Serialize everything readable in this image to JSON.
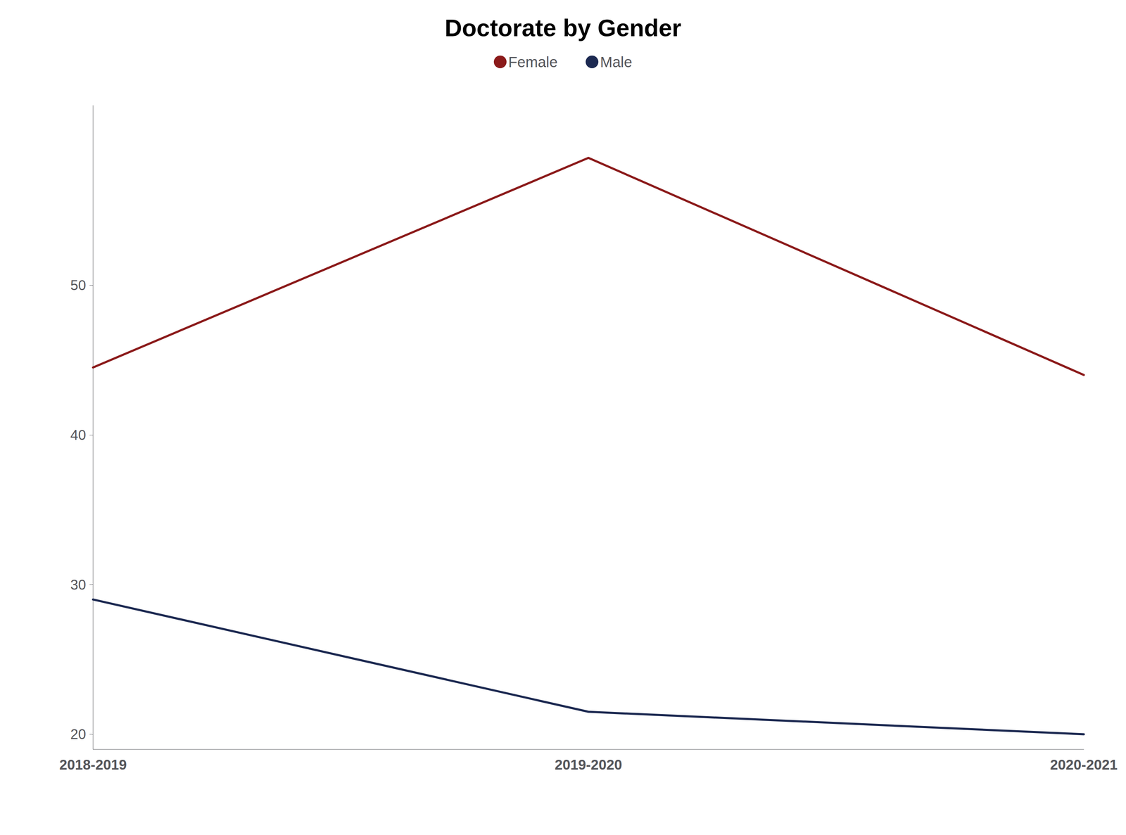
{
  "chart_data": {
    "type": "line",
    "title": "Doctorate by Gender",
    "categories": [
      "2018-2019",
      "2019-2020",
      "2020-2021"
    ],
    "series": [
      {
        "name": "Female",
        "color": "#8B1A1A",
        "values": [
          44.5,
          58.5,
          44.0
        ]
      },
      {
        "name": "Male",
        "color": "#1C2951",
        "values": [
          29.0,
          21.5,
          20.0
        ]
      }
    ],
    "ylim": [
      19.0,
      62.0
    ],
    "yticks": [
      20,
      30,
      40,
      50
    ],
    "grid": false,
    "legend": "top"
  }
}
